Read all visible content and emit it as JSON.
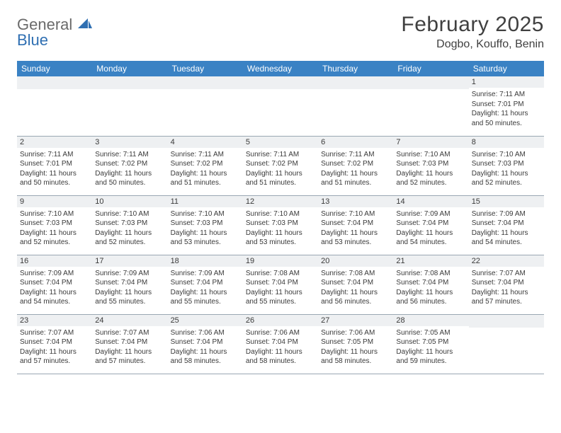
{
  "logo": {
    "word1": "General",
    "word2": "Blue",
    "word1_color": "#6a6a6a",
    "word2_color": "#2f6fb2",
    "shape_color": "#2f6fb2"
  },
  "title": "February 2025",
  "location": "Dogbo, Kouffo, Benin",
  "colors": {
    "header_bg": "#3a82c4",
    "header_fg": "#ffffff",
    "daynum_bg": "#eef0f2",
    "rule": "#9aa7b3",
    "text": "#3a3a3a",
    "page_bg": "#ffffff"
  },
  "fonts": {
    "title_size": 30,
    "location_size": 16,
    "dayhdr_size": 12,
    "cell_size": 10
  },
  "layout": {
    "cols": 7,
    "rows": 5,
    "first_day_col": 6
  },
  "day_headers": [
    "Sunday",
    "Monday",
    "Tuesday",
    "Wednesday",
    "Thursday",
    "Friday",
    "Saturday"
  ],
  "days": [
    {
      "n": 1,
      "sunrise": "7:11 AM",
      "sunset": "7:01 PM",
      "daylight": "11 hours and 50 minutes."
    },
    {
      "n": 2,
      "sunrise": "7:11 AM",
      "sunset": "7:01 PM",
      "daylight": "11 hours and 50 minutes."
    },
    {
      "n": 3,
      "sunrise": "7:11 AM",
      "sunset": "7:02 PM",
      "daylight": "11 hours and 50 minutes."
    },
    {
      "n": 4,
      "sunrise": "7:11 AM",
      "sunset": "7:02 PM",
      "daylight": "11 hours and 51 minutes."
    },
    {
      "n": 5,
      "sunrise": "7:11 AM",
      "sunset": "7:02 PM",
      "daylight": "11 hours and 51 minutes."
    },
    {
      "n": 6,
      "sunrise": "7:11 AM",
      "sunset": "7:02 PM",
      "daylight": "11 hours and 51 minutes."
    },
    {
      "n": 7,
      "sunrise": "7:10 AM",
      "sunset": "7:03 PM",
      "daylight": "11 hours and 52 minutes."
    },
    {
      "n": 8,
      "sunrise": "7:10 AM",
      "sunset": "7:03 PM",
      "daylight": "11 hours and 52 minutes."
    },
    {
      "n": 9,
      "sunrise": "7:10 AM",
      "sunset": "7:03 PM",
      "daylight": "11 hours and 52 minutes."
    },
    {
      "n": 10,
      "sunrise": "7:10 AM",
      "sunset": "7:03 PM",
      "daylight": "11 hours and 52 minutes."
    },
    {
      "n": 11,
      "sunrise": "7:10 AM",
      "sunset": "7:03 PM",
      "daylight": "11 hours and 53 minutes."
    },
    {
      "n": 12,
      "sunrise": "7:10 AM",
      "sunset": "7:03 PM",
      "daylight": "11 hours and 53 minutes."
    },
    {
      "n": 13,
      "sunrise": "7:10 AM",
      "sunset": "7:04 PM",
      "daylight": "11 hours and 53 minutes."
    },
    {
      "n": 14,
      "sunrise": "7:09 AM",
      "sunset": "7:04 PM",
      "daylight": "11 hours and 54 minutes."
    },
    {
      "n": 15,
      "sunrise": "7:09 AM",
      "sunset": "7:04 PM",
      "daylight": "11 hours and 54 minutes."
    },
    {
      "n": 16,
      "sunrise": "7:09 AM",
      "sunset": "7:04 PM",
      "daylight": "11 hours and 54 minutes."
    },
    {
      "n": 17,
      "sunrise": "7:09 AM",
      "sunset": "7:04 PM",
      "daylight": "11 hours and 55 minutes."
    },
    {
      "n": 18,
      "sunrise": "7:09 AM",
      "sunset": "7:04 PM",
      "daylight": "11 hours and 55 minutes."
    },
    {
      "n": 19,
      "sunrise": "7:08 AM",
      "sunset": "7:04 PM",
      "daylight": "11 hours and 55 minutes."
    },
    {
      "n": 20,
      "sunrise": "7:08 AM",
      "sunset": "7:04 PM",
      "daylight": "11 hours and 56 minutes."
    },
    {
      "n": 21,
      "sunrise": "7:08 AM",
      "sunset": "7:04 PM",
      "daylight": "11 hours and 56 minutes."
    },
    {
      "n": 22,
      "sunrise": "7:07 AM",
      "sunset": "7:04 PM",
      "daylight": "11 hours and 57 minutes."
    },
    {
      "n": 23,
      "sunrise": "7:07 AM",
      "sunset": "7:04 PM",
      "daylight": "11 hours and 57 minutes."
    },
    {
      "n": 24,
      "sunrise": "7:07 AM",
      "sunset": "7:04 PM",
      "daylight": "11 hours and 57 minutes."
    },
    {
      "n": 25,
      "sunrise": "7:06 AM",
      "sunset": "7:04 PM",
      "daylight": "11 hours and 58 minutes."
    },
    {
      "n": 26,
      "sunrise": "7:06 AM",
      "sunset": "7:04 PM",
      "daylight": "11 hours and 58 minutes."
    },
    {
      "n": 27,
      "sunrise": "7:06 AM",
      "sunset": "7:05 PM",
      "daylight": "11 hours and 58 minutes."
    },
    {
      "n": 28,
      "sunrise": "7:05 AM",
      "sunset": "7:05 PM",
      "daylight": "11 hours and 59 minutes."
    }
  ],
  "labels": {
    "sunrise": "Sunrise:",
    "sunset": "Sunset:",
    "daylight": "Daylight:"
  }
}
